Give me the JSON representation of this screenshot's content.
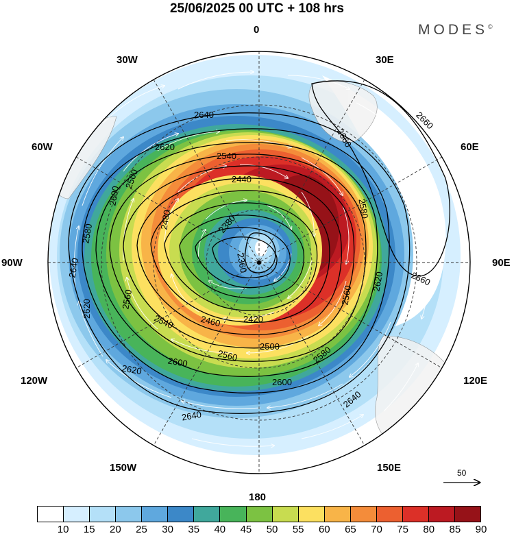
{
  "title": "25/06/2025  00 UTC  + 108 hrs",
  "brand": "MODES",
  "brand_mark": "©",
  "longitude_labels": {
    "n0": "0",
    "n30w": "30W",
    "n30e": "30E",
    "n60w": "60W",
    "n60e": "60E",
    "n90w": "90W",
    "n90e": "90E",
    "n120w": "120W",
    "n120e": "120E",
    "n150w": "150W",
    "n150e": "150E",
    "n180": "180"
  },
  "contour_labels": {
    "c2640a": "2640",
    "c2660a": "2660",
    "c2660b": "2660",
    "c2660c": "2660",
    "c2620a": "2620",
    "c2540a": "2540",
    "c2440a": "2440",
    "c2500a": "2500",
    "c2600a": "2600",
    "c2580a": "2580",
    "c2480a": "2480",
    "c2380a": "2380",
    "c2360a": "2360",
    "c2640b": "2640",
    "c2620b": "2620",
    "c2560a": "2560",
    "c2540b": "2540",
    "c2460a": "2460",
    "c2420a": "2420",
    "c2500b": "2500",
    "c2580b": "2580",
    "c2560b": "2560",
    "c2600b": "2600",
    "c2620c": "2620",
    "c2640c": "2640",
    "c2640d": "2640",
    "c2600c": "2600",
    "c2580c": "2580",
    "c2620d": "2620",
    "c2560c": "2560"
  },
  "wind_reference": "50",
  "colorbar": {
    "ticks": [
      "10",
      "15",
      "20",
      "25",
      "30",
      "35",
      "40",
      "45",
      "50",
      "55",
      "60",
      "65",
      "70",
      "75",
      "80",
      "85",
      "90"
    ],
    "colors": [
      "#ffffff",
      "#d6efff",
      "#b4e0f8",
      "#8cc8ec",
      "#5fa8de",
      "#3c88c8",
      "#40a89c",
      "#48b45a",
      "#7cc242",
      "#c8dc50",
      "#fce060",
      "#f8b448",
      "#f48c3a",
      "#ec6030",
      "#dc3028",
      "#bc1a22",
      "#961218"
    ]
  },
  "map": {
    "contour_levels": [
      2360,
      2380,
      2420,
      2440,
      2460,
      2480,
      2500,
      2540,
      2560,
      2580,
      2600,
      2620,
      2640,
      2660
    ],
    "wind_speed_units_max": 90
  }
}
